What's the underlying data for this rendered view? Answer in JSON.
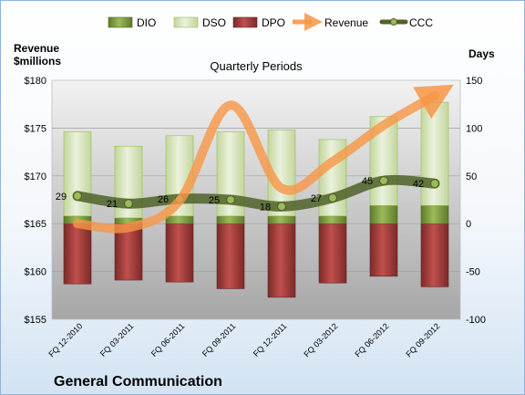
{
  "chart_data": {
    "type": "bar",
    "title": "Quarterly Periods",
    "footer_title": "General Communication",
    "left_axis_label_line1": "Revenue",
    "left_axis_label_line2": "$millions",
    "right_axis_label": "Days",
    "categories": [
      "FQ 12-2010",
      "FQ 03-2011",
      "FQ 06-2011",
      "FQ 09-2011",
      "FQ 12-2011",
      "FQ 03-2012",
      "FQ 06-2012",
      "FQ 09-2012"
    ],
    "left_ylim": [
      155,
      180
    ],
    "left_ticks": [
      "$155",
      "$160",
      "$165",
      "$170",
      "$175",
      "$180"
    ],
    "right_ylim": [
      -100,
      150
    ],
    "right_ticks": [
      "-100",
      "-50",
      "0",
      "50",
      "100",
      "150"
    ],
    "grid": true,
    "legend_position": "top",
    "series": [
      {
        "name": "DIO",
        "axis": "right",
        "kind": "stacked-bar",
        "color": "#77933c",
        "values": [
          8,
          6,
          8,
          8,
          8,
          8,
          19,
          19
        ]
      },
      {
        "name": "DSO",
        "axis": "right",
        "kind": "stacked-bar",
        "color": "#d7e4bd",
        "values": [
          88,
          75,
          84,
          88,
          90,
          80,
          93,
          108
        ]
      },
      {
        "name": "DPO",
        "axis": "right",
        "kind": "stacked-bar-negative",
        "color": "#953735",
        "values": [
          -63,
          -59,
          -61,
          -68,
          -77,
          -62,
          -55,
          -66
        ]
      },
      {
        "name": "Revenue",
        "axis": "left",
        "kind": "line",
        "color": "#f79646",
        "values": [
          165.0,
          164.6,
          167.4,
          177.4,
          168.7,
          171.5,
          175.3,
          178.4
        ]
      },
      {
        "name": "CCC",
        "axis": "right",
        "kind": "line",
        "color": "#4f6228",
        "values": [
          29,
          21,
          26,
          25,
          18,
          27,
          45,
          42
        ]
      }
    ],
    "data_labels": [
      "29",
      "21",
      "26",
      "25",
      "18",
      "27",
      "45",
      "42"
    ]
  }
}
